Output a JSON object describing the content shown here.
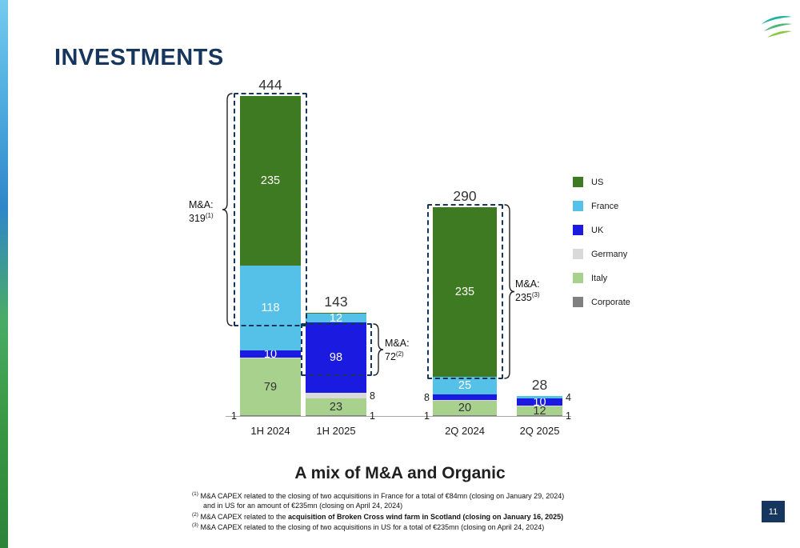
{
  "slide": {
    "title": "INVESTMENTS",
    "subtitle": "A mix of M&A and Organic",
    "page_number": "11"
  },
  "icons": {
    "logo": "leaf-swoosh-logo"
  },
  "colors": {
    "navy": "#17365d",
    "label_dark": "#333333",
    "label_light": "#ffffff",
    "series": {
      "US": "#3e7a21",
      "France": "#55c0e8",
      "UK": "#1a1ae0",
      "Germany": "#d9d9d9",
      "Italy": "#a9d18e",
      "Corporate": "#808080"
    }
  },
  "chart_data": {
    "type": "bar",
    "stacked": true,
    "legend_position": "right",
    "categories": [
      "1H 2024",
      "1H 2025",
      "2Q 2024",
      "2Q 2025"
    ],
    "totals": [
      444,
      143,
      290,
      28
    ],
    "series": [
      {
        "name": "Corporate",
        "values": [
          1,
          1,
          1,
          1
        ]
      },
      {
        "name": "Italy",
        "values": [
          79,
          23,
          20,
          12
        ]
      },
      {
        "name": "Germany",
        "values": [
          1,
          8,
          1,
          1
        ]
      },
      {
        "name": "UK",
        "values": [
          10,
          98,
          8,
          10
        ]
      },
      {
        "name": "France",
        "values": [
          118,
          12,
          25,
          4
        ]
      },
      {
        "name": "US",
        "values": [
          235,
          1,
          235,
          0
        ]
      }
    ],
    "bars": [
      {
        "category": "1H 2024",
        "total_label": "444",
        "segments": [
          {
            "series": "Corporate",
            "value": 1,
            "label": "1",
            "label_pos": "left"
          },
          {
            "series": "Italy",
            "value": 79,
            "label": "79",
            "label_pos": "inside"
          },
          {
            "series": "Germany",
            "value": 1,
            "label": null,
            "label_pos": null
          },
          {
            "series": "UK",
            "value": 10,
            "label": "10",
            "label_pos": "inside"
          },
          {
            "series": "France",
            "value": 118,
            "label": "118",
            "label_pos": "inside"
          },
          {
            "series": "US",
            "value": 235,
            "label": "235",
            "label_pos": "inside"
          }
        ]
      },
      {
        "category": "1H 2025",
        "total_label": "143",
        "segments": [
          {
            "series": "Corporate",
            "value": 1,
            "label": "1",
            "label_pos": "right"
          },
          {
            "series": "Italy",
            "value": 23,
            "label": "23",
            "label_pos": "inside"
          },
          {
            "series": "Germany",
            "value": 8,
            "label": "8",
            "label_pos": "right"
          },
          {
            "series": "UK",
            "value": 98,
            "label": "98",
            "label_pos": "inside"
          },
          {
            "series": "France",
            "value": 12,
            "label": "12",
            "label_pos": "inside"
          },
          {
            "series": "US",
            "value": 1,
            "label": null,
            "label_pos": null
          }
        ]
      },
      {
        "category": "2Q 2024",
        "total_label": "290",
        "segments": [
          {
            "series": "Corporate",
            "value": 1,
            "label": "1",
            "label_pos": "left"
          },
          {
            "series": "Italy",
            "value": 20,
            "label": "20",
            "label_pos": "inside"
          },
          {
            "series": "Germany",
            "value": 1,
            "label": null,
            "label_pos": null
          },
          {
            "series": "UK",
            "value": 8,
            "label": "8",
            "label_pos": "left"
          },
          {
            "series": "France",
            "value": 25,
            "label": "25",
            "label_pos": "inside"
          },
          {
            "series": "US",
            "value": 235,
            "label": "235",
            "label_pos": "inside"
          }
        ]
      },
      {
        "category": "2Q 2025",
        "total_label": "28",
        "segments": [
          {
            "series": "Corporate",
            "value": 1,
            "label": "1",
            "label_pos": "right"
          },
          {
            "series": "Italy",
            "value": 12,
            "label": "12",
            "label_pos": "inside"
          },
          {
            "series": "Germany",
            "value": 1,
            "label": null,
            "label_pos": null
          },
          {
            "series": "UK",
            "value": 10,
            "label": "10",
            "label_pos": "inside"
          },
          {
            "series": "France",
            "value": 4,
            "label": "4",
            "label_pos": "right"
          }
        ]
      }
    ],
    "legend": [
      "US",
      "France",
      "UK",
      "Germany",
      "Italy",
      "Corporate"
    ],
    "annotations": [
      {
        "bar_index": 0,
        "label": "M&A:",
        "value": "319",
        "sup": "(1)",
        "side": "left",
        "covered_value": 319
      },
      {
        "bar_index": 1,
        "label": "M&A:",
        "value": "72",
        "sup": "(2)",
        "side": "right",
        "covered_value": 72
      },
      {
        "bar_index": 2,
        "label": "M&A:",
        "value": "235",
        "sup": "(3)",
        "side": "right",
        "covered_value": 235
      }
    ]
  },
  "footnotes": [
    {
      "sup": "(1)",
      "lines": [
        [
          {
            "t": "M&A CAPEX related to the closing of two acquisitions in France for a total of €84mn (closing on January 29, 2024)",
            "b": false
          }
        ],
        [
          {
            "t": "and in US for an amount of €235mn (closing on April 24, 2024)",
            "b": false
          }
        ]
      ]
    },
    {
      "sup": "(2)",
      "lines": [
        [
          {
            "t": "M&A CAPEX related to the ",
            "b": false
          },
          {
            "t": "acquisition of Broken Cross wind farm in Scotland (closing on January 16, 2025)",
            "b": true
          }
        ]
      ]
    },
    {
      "sup": "(3)",
      "lines": [
        [
          {
            "t": "M&A CAPEX related to the closing of two acquisitions in US for a total of €235mn (closing on April 24, 2024)",
            "b": false
          }
        ]
      ]
    }
  ]
}
